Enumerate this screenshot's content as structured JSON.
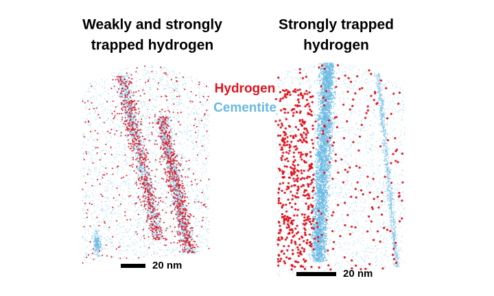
{
  "panels": [
    {
      "title_lines": [
        "Weakly and strongly",
        "trapped hydrogen"
      ],
      "scale_label": "20 nm"
    },
    {
      "title_lines": [
        "Strongly trapped",
        "hydrogen"
      ],
      "scale_label": "20 nm"
    }
  ],
  "legend": [
    {
      "label": "Hydrogen",
      "color": "#e0141e"
    },
    {
      "label": "Cementite",
      "color": "#6bb9e3"
    }
  ]
}
